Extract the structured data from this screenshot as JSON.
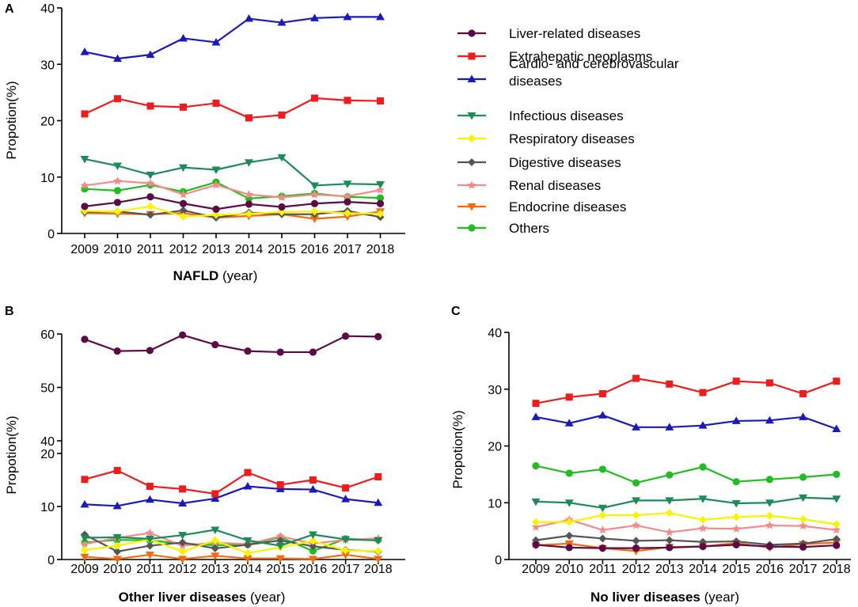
{
  "series_defs": [
    {
      "key": "liver",
      "name": "Liver-related diseases",
      "color": "#5b0a45",
      "marker": "circle"
    },
    {
      "key": "extra",
      "name": "Extrahepatic neoplasms",
      "color": "#ee1c1c",
      "marker": "square"
    },
    {
      "key": "cardio",
      "name": "Cardio- and cerebrovascular diseases",
      "name_lines": [
        "Cardio- and cerebrovascular",
        "diseases"
      ],
      "color": "#1a1ab8",
      "marker": "triangle-up"
    },
    {
      "key": "infect",
      "name": "Infectious diseases",
      "color": "#1e8a5a",
      "marker": "triangle-down"
    },
    {
      "key": "resp",
      "name": "Respiratory diseases",
      "color": "#f5f500",
      "marker": "diamond"
    },
    {
      "key": "dig",
      "name": "Digestive diseases",
      "color": "#555555",
      "marker": "diamond"
    },
    {
      "key": "renal",
      "name": "Renal diseases",
      "color": "#f48a8a",
      "marker": "star"
    },
    {
      "key": "endo",
      "name": "Endocrine diseases",
      "color": "#f56a10",
      "marker": "triangle-down"
    },
    {
      "key": "others",
      "name": "Others",
      "color": "#22bb22",
      "marker": "circle"
    }
  ],
  "chart_data": [
    {
      "panel": "A",
      "type": "line",
      "xlabel_bold": "NAFLD",
      "xlabel_rest": " (year)",
      "ylabel": "Propotion(%)",
      "categories": [
        "2009",
        "2010",
        "2011",
        "2012",
        "2013",
        "2014",
        "2015",
        "2016",
        "2017",
        "2018"
      ],
      "ylim": [
        0,
        40
      ],
      "yticks": [
        0,
        10,
        20,
        30,
        40
      ],
      "legend": "right",
      "series": [
        {
          "key": "liver",
          "values": [
            4.8,
            5.5,
            6.5,
            5.3,
            4.3,
            5.2,
            4.7,
            5.3,
            5.6,
            5.3
          ]
        },
        {
          "key": "extra",
          "values": [
            21.2,
            23.9,
            22.6,
            22.4,
            23.1,
            20.5,
            21.0,
            24.0,
            23.6,
            23.5
          ]
        },
        {
          "key": "cardio",
          "values": [
            32.2,
            31.0,
            31.7,
            34.6,
            33.9,
            38.1,
            37.4,
            38.2,
            38.4,
            38.4
          ]
        },
        {
          "key": "infect",
          "values": [
            13.2,
            12.0,
            10.4,
            11.7,
            11.3,
            12.6,
            13.5,
            8.5,
            8.8,
            8.7
          ]
        },
        {
          "key": "resp",
          "values": [
            4.0,
            3.9,
            4.8,
            3.0,
            3.3,
            3.5,
            3.8,
            3.9,
            3.6,
            3.5
          ]
        },
        {
          "key": "dig",
          "values": [
            3.8,
            3.9,
            3.3,
            4.1,
            2.8,
            3.7,
            3.4,
            3.4,
            4.0,
            2.9
          ]
        },
        {
          "key": "renal",
          "values": [
            8.5,
            9.3,
            8.9,
            6.9,
            8.6,
            6.9,
            6.4,
            6.9,
            6.6,
            7.7
          ]
        },
        {
          "key": "endo",
          "values": [
            3.6,
            3.5,
            3.4,
            3.6,
            2.8,
            3.1,
            3.4,
            2.6,
            3.0,
            3.9
          ]
        },
        {
          "key": "others",
          "values": [
            7.9,
            7.6,
            8.6,
            7.4,
            9.1,
            6.2,
            6.6,
            7.1,
            6.5,
            6.3
          ]
        }
      ]
    },
    {
      "panel": "B",
      "type": "line",
      "broken_axis": true,
      "xlabel_bold": "Other liver diseases",
      "xlabel_rest": " (year)",
      "ylabel": "Propotion(%)",
      "categories": [
        "2009",
        "2010",
        "2011",
        "2012",
        "2013",
        "2014",
        "2015",
        "2016",
        "2017",
        "2018"
      ],
      "ylim_lower": [
        0,
        20
      ],
      "yticks_lower": [
        0,
        10,
        20
      ],
      "ylim_upper": [
        40,
        60
      ],
      "yticks_upper": [
        40,
        50,
        60
      ],
      "series": [
        {
          "key": "liver",
          "values": [
            59.0,
            56.8,
            56.9,
            59.8,
            58.0,
            56.8,
            56.6,
            56.6,
            59.6,
            59.5
          ]
        },
        {
          "key": "extra",
          "values": [
            15.1,
            16.8,
            13.8,
            13.3,
            12.4,
            16.4,
            14.1,
            15.0,
            13.5,
            15.6
          ]
        },
        {
          "key": "cardio",
          "values": [
            10.4,
            10.1,
            11.3,
            10.6,
            11.5,
            13.8,
            13.3,
            13.2,
            11.4,
            10.7
          ]
        },
        {
          "key": "infect",
          "values": [
            4.1,
            4.2,
            3.9,
            4.6,
            5.6,
            3.6,
            2.6,
            4.7,
            3.8,
            3.6
          ]
        },
        {
          "key": "resp",
          "values": [
            1.8,
            2.6,
            3.8,
            1.5,
            3.6,
            1.2,
            2.3,
            3.5,
            1.7,
            1.6
          ]
        },
        {
          "key": "dig",
          "values": [
            4.7,
            1.5,
            2.6,
            3.2,
            2.1,
            2.8,
            3.6,
            2.5,
            1.8,
            1.5
          ]
        },
        {
          "key": "renal",
          "values": [
            2.9,
            4.1,
            5.0,
            2.6,
            3.2,
            2.9,
            4.4,
            3.0,
            3.7,
            4.0
          ]
        },
        {
          "key": "endo",
          "values": [
            0.5,
            0.1,
            0.9,
            0.1,
            0.7,
            0.2,
            0.2,
            0.1,
            0.9,
            0.1
          ]
        },
        {
          "key": "others",
          "values": [
            3.2,
            3.7,
            3.6,
            3.0,
            2.7,
            2.8,
            4.2,
            1.6,
            3.9,
            3.7
          ]
        }
      ]
    },
    {
      "panel": "C",
      "type": "line",
      "xlabel_bold": "No liver diseases",
      "xlabel_rest": " (year)",
      "ylabel": "Propotion(%)",
      "categories": [
        "2009",
        "2010",
        "2011",
        "2012",
        "2013",
        "2014",
        "2015",
        "2016",
        "2017",
        "2018"
      ],
      "ylim": [
        0,
        40
      ],
      "yticks": [
        0,
        10,
        20,
        30,
        40
      ],
      "series": [
        {
          "key": "liver",
          "values": [
            2.6,
            2.1,
            2.0,
            2.0,
            2.1,
            2.3,
            2.6,
            2.3,
            2.2,
            2.5
          ]
        },
        {
          "key": "extra",
          "values": [
            27.5,
            28.6,
            29.2,
            31.9,
            30.9,
            29.4,
            31.4,
            31.1,
            29.2,
            31.4
          ]
        },
        {
          "key": "cardio",
          "values": [
            25.1,
            24.0,
            25.4,
            23.3,
            23.3,
            23.6,
            24.4,
            24.5,
            25.1,
            23.0
          ]
        },
        {
          "key": "infect",
          "values": [
            10.2,
            10.0,
            9.1,
            10.4,
            10.4,
            10.7,
            9.9,
            10.0,
            10.9,
            10.7
          ]
        },
        {
          "key": "resp",
          "values": [
            6.6,
            6.6,
            7.8,
            7.8,
            8.2,
            7.0,
            7.5,
            7.7,
            7.1,
            6.2
          ]
        },
        {
          "key": "dig",
          "values": [
            3.4,
            4.2,
            3.7,
            3.3,
            3.4,
            3.1,
            3.2,
            2.6,
            2.8,
            3.6
          ]
        },
        {
          "key": "renal",
          "values": [
            5.7,
            7.0,
            5.2,
            6.0,
            4.8,
            5.5,
            5.4,
            6.0,
            5.9,
            5.2
          ]
        },
        {
          "key": "endo",
          "values": [
            2.5,
            2.8,
            2.0,
            1.5,
            2.2,
            2.3,
            2.9,
            2.1,
            2.7,
            3.0
          ]
        },
        {
          "key": "others",
          "values": [
            16.5,
            15.2,
            15.9,
            13.5,
            14.9,
            16.3,
            13.7,
            14.1,
            14.5,
            15.0
          ]
        }
      ]
    }
  ]
}
